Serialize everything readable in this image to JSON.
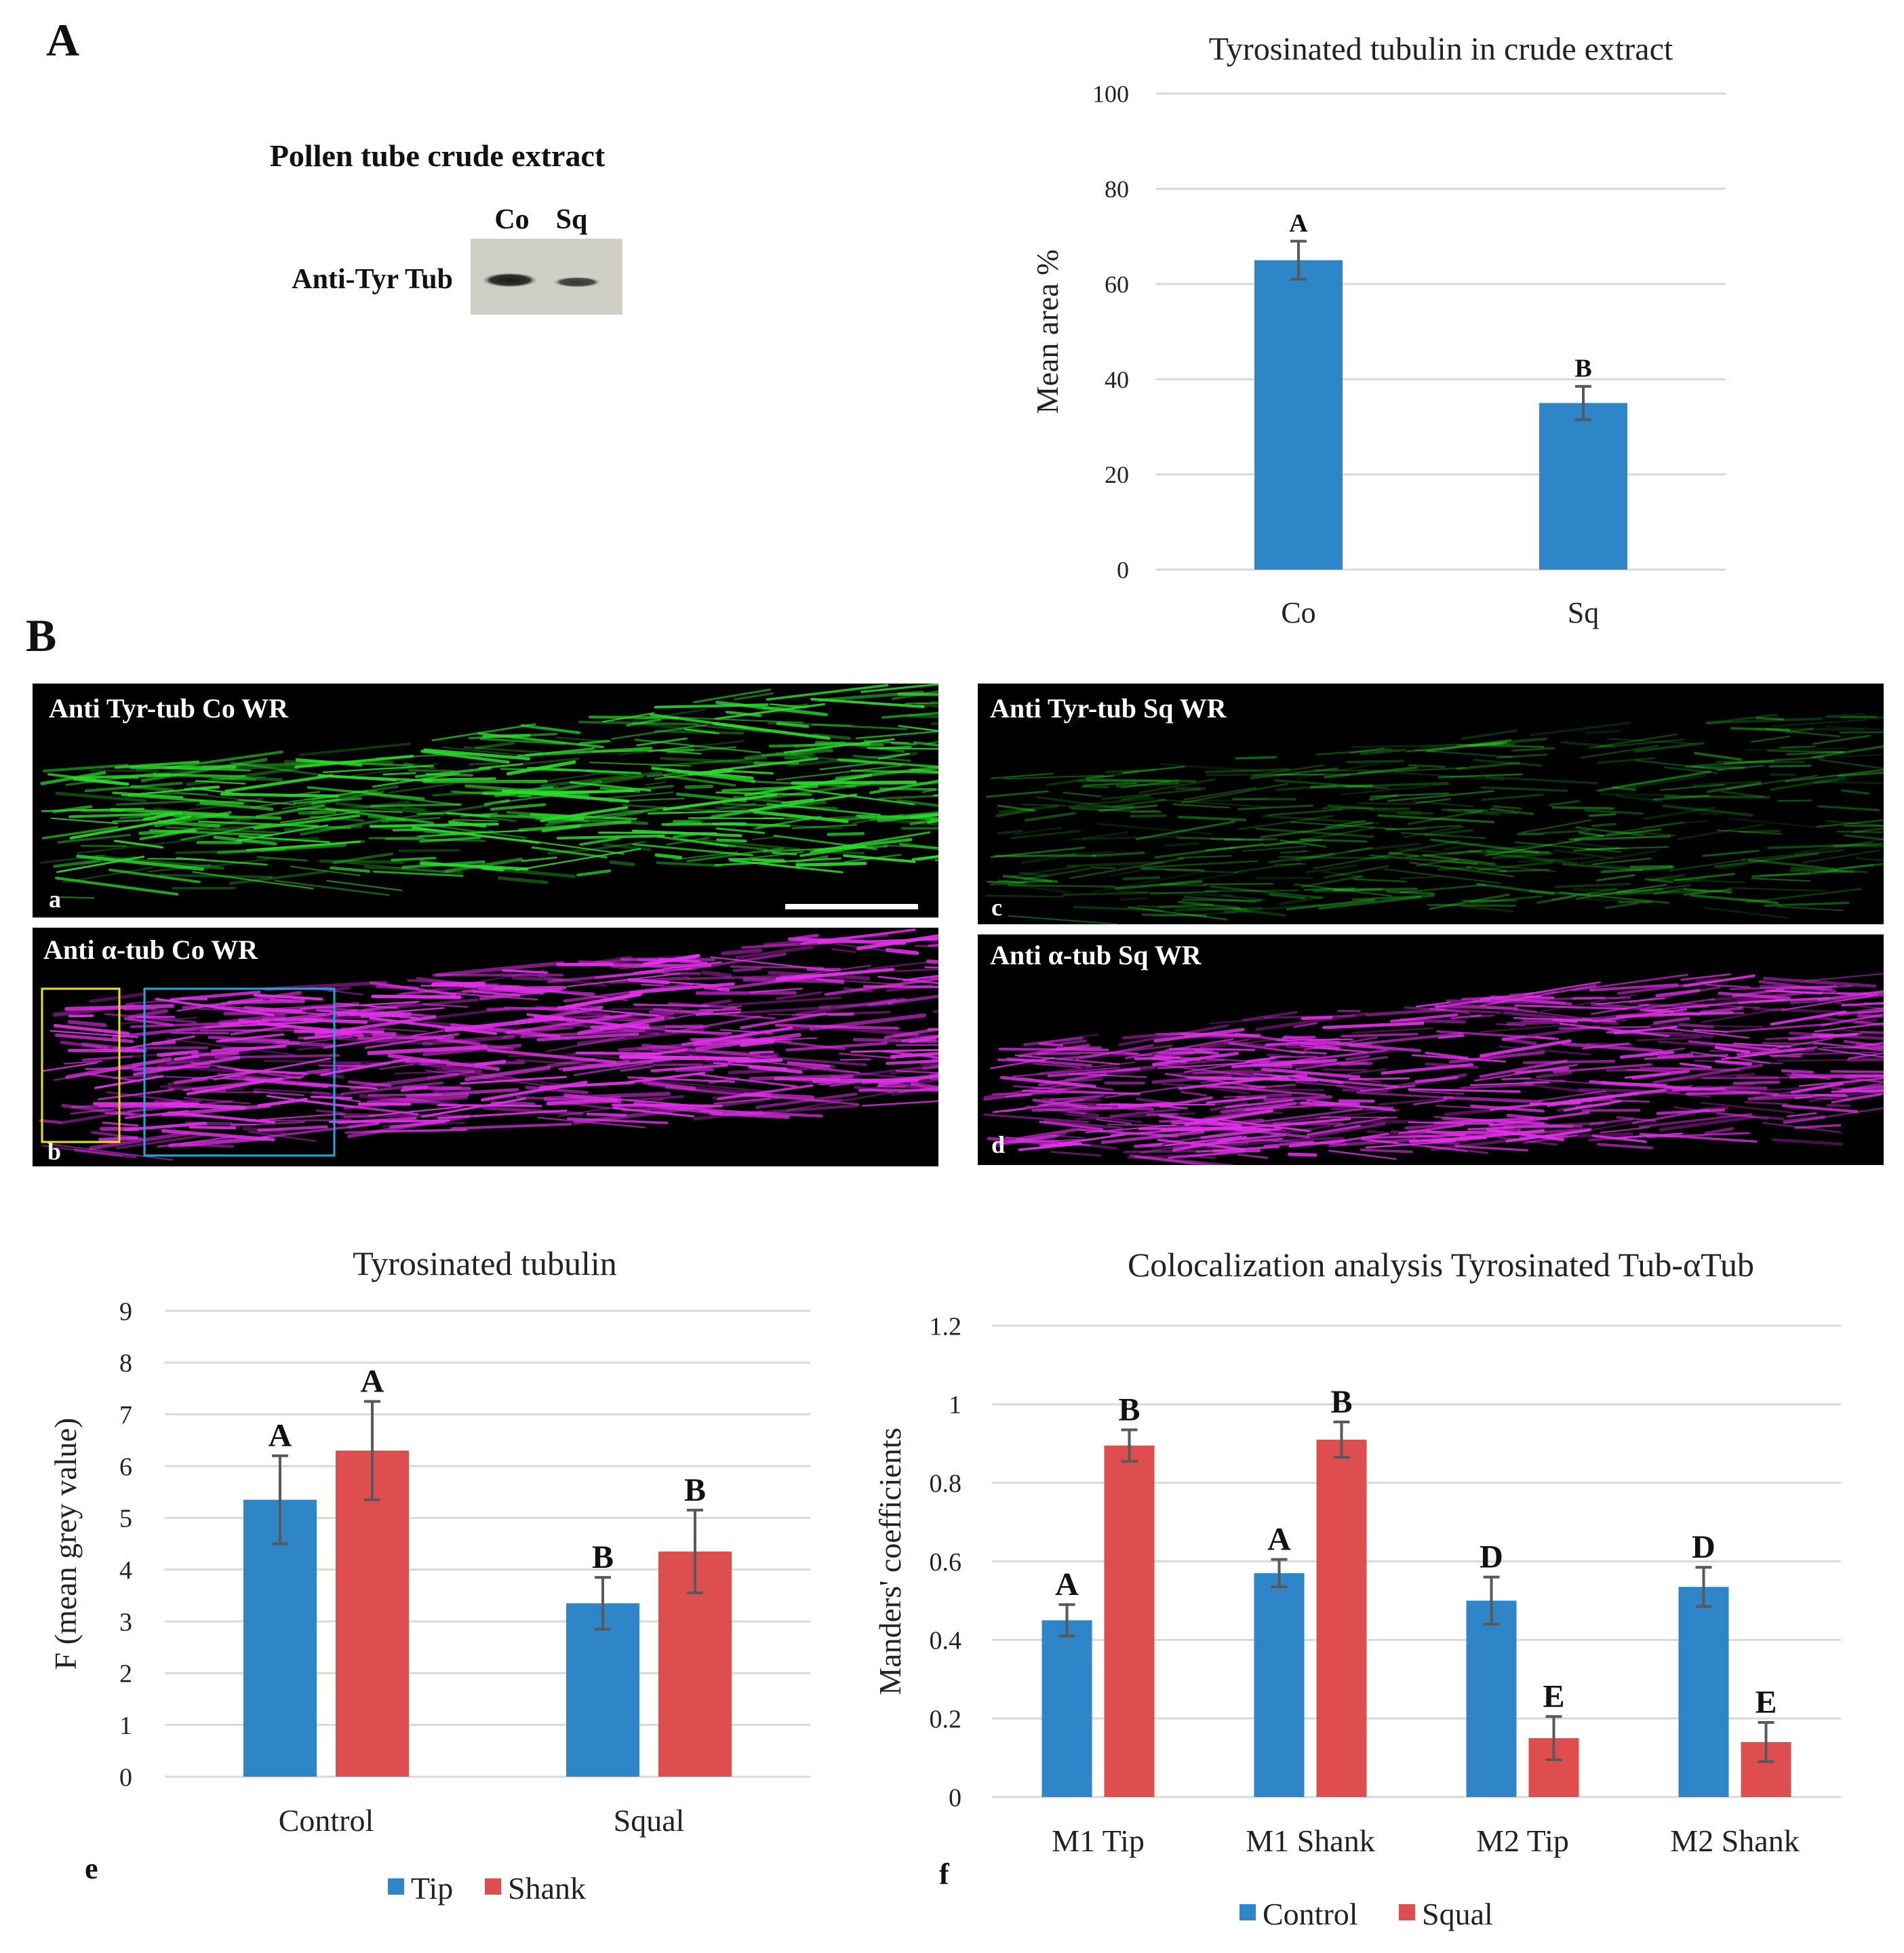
{
  "panel_labels": {
    "A": "A",
    "B": "B",
    "e": "e",
    "f": "f"
  },
  "western_blot": {
    "title": "Pollen tube crude extract",
    "lane_labels": [
      "Co",
      "Sq"
    ],
    "row_label": "Anti-Tyr Tub"
  },
  "micrographs": [
    {
      "title": "Anti Tyr-tub Co WR",
      "letter": "a",
      "channel": "green"
    },
    {
      "title": "Anti Tyr-tub Sq WR",
      "letter": "c",
      "channel": "green"
    },
    {
      "title": "Anti α-tub Co WR",
      "letter": "b",
      "channel": "magenta"
    },
    {
      "title": "Anti α-tub Sq WR",
      "letter": "d",
      "channel": "magenta"
    }
  ],
  "colors": {
    "control": "#2E86C8",
    "squal": "#DE4E4E",
    "grid": "#D9D9D9",
    "error": "#595959",
    "green_signal": "#2bdc2b",
    "magenta_signal": "#e030e8",
    "roi_yellow": "#e8e800",
    "roi_cyan": "#1fa8e0"
  },
  "chart_data": [
    {
      "id": "chart1",
      "type": "bar",
      "title": "Tyrosinated tubulin in crude extract",
      "xlabel": "",
      "ylabel": "Mean area %",
      "ylim": [
        0,
        100
      ],
      "yticks": [
        0,
        20,
        40,
        60,
        80,
        100
      ],
      "grid": true,
      "categories": [
        "Co",
        "Sq"
      ],
      "series": [
        {
          "name": "Mean area",
          "values": [
            65,
            35
          ],
          "errors": [
            4,
            3.5
          ],
          "letters": [
            "A",
            "B"
          ]
        }
      ]
    },
    {
      "id": "chart2",
      "type": "bar",
      "title": "Tyrosinated tubulin",
      "xlabel": "",
      "ylabel": "F (mean grey value)",
      "ylim": [
        0,
        9
      ],
      "yticks": [
        0,
        1,
        2,
        3,
        4,
        5,
        6,
        7,
        8,
        9
      ],
      "grid": true,
      "legend": "bottom",
      "categories": [
        "Control",
        "Squal"
      ],
      "series": [
        {
          "name": "Tip",
          "values": [
            5.35,
            3.35
          ],
          "errors": [
            0.85,
            0.5
          ],
          "letters": [
            "A",
            "B"
          ]
        },
        {
          "name": "Shank",
          "values": [
            6.3,
            4.35
          ],
          "errors": [
            0.95,
            0.8
          ],
          "letters": [
            "A",
            "B"
          ]
        }
      ]
    },
    {
      "id": "chart3",
      "type": "bar",
      "title": "Colocalization analysis Tyrosinated Tub-αTub",
      "xlabel": "",
      "ylabel": "Manders' coefficients",
      "ylim": [
        0,
        1.2
      ],
      "yticks": [
        "0",
        "0.2",
        "0.4",
        "0.6",
        "0.8",
        "1",
        "1.2"
      ],
      "grid": true,
      "legend": "bottom",
      "categories": [
        "M1 Tip",
        "M1 Shank",
        "M2 Tip",
        "M2 Shank"
      ],
      "series": [
        {
          "name": "Control",
          "values": [
            0.45,
            0.57,
            0.5,
            0.535
          ],
          "errors": [
            0.04,
            0.035,
            0.06,
            0.05
          ],
          "letters": [
            "A",
            "A",
            "D",
            "D"
          ]
        },
        {
          "name": "Squal",
          "values": [
            0.895,
            0.91,
            0.15,
            0.14
          ],
          "errors": [
            0.04,
            0.045,
            0.055,
            0.05
          ],
          "letters": [
            "B",
            "B",
            "E",
            "E"
          ]
        }
      ]
    }
  ]
}
